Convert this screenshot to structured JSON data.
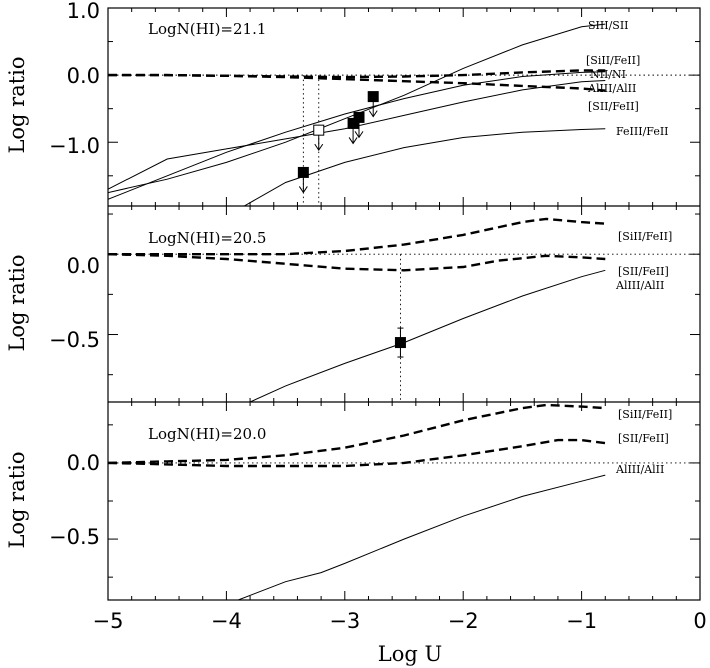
{
  "chart_data": {
    "type": "line",
    "xlabel": "Log  U",
    "xlim": [
      -5,
      0
    ],
    "x_ticks": [
      -5,
      -4,
      -3,
      -2,
      -1,
      0
    ],
    "x_tick_labels": [
      "−5",
      "−4",
      "−3",
      "−2",
      "−1",
      "0"
    ],
    "panels": [
      {
        "id": "p1",
        "title": "LogN(HI)=21.1",
        "ylabel": "Log  ratio",
        "ylim": [
          -1.95,
          1.0
        ],
        "y_ticks": [
          1.0,
          0.0,
          -1.0
        ],
        "y_tick_labels": [
          "1.0",
          "0.0",
          "−1.0"
        ],
        "minor_y_ticks": [
          0.5,
          -0.5,
          -1.5
        ],
        "reference_line": 0,
        "series": [
          {
            "name": "SIII/SII",
            "style": "solid",
            "x": [
              -5,
              -4.5,
              -4,
              -3.5,
              -3,
              -2.5,
              -2,
              -1.5,
              -1,
              -0.8
            ],
            "y": [
              -1.75,
              -1.55,
              -1.3,
              -1.0,
              -0.65,
              -0.3,
              0.1,
              0.45,
              0.72,
              0.76
            ]
          },
          {
            "name": "[SiII/FeII]",
            "style": "dashed",
            "x": [
              -5,
              -4.5,
              -4,
              -3.5,
              -3,
              -2.5,
              -2,
              -1.5,
              -1,
              -0.8
            ],
            "y": [
              0.0,
              0.0,
              -0.01,
              -0.02,
              -0.03,
              -0.02,
              0.0,
              0.04,
              0.07,
              0.07
            ]
          },
          {
            "name": "NII/NI",
            "style": "solid",
            "x": [
              -5,
              -4.5,
              -4,
              -3.5,
              -3,
              -2.5,
              -2,
              -1.5,
              -1,
              -0.8
            ],
            "y": [
              -1.85,
              -1.5,
              -1.15,
              -0.85,
              -0.58,
              -0.35,
              -0.15,
              -0.02,
              0.04,
              0.05
            ]
          },
          {
            "name": "AlIII/AlII",
            "style": "dashed",
            "x": [
              -5,
              -4.5,
              -4,
              -3.5,
              -3,
              -2.5,
              -2,
              -1.5,
              -1,
              -0.8
            ],
            "y": [
              0.0,
              0.0,
              -0.01,
              -0.03,
              -0.06,
              -0.09,
              -0.12,
              -0.16,
              -0.2,
              -0.23
            ]
          },
          {
            "name": "[SII/FeII]",
            "style": "solid",
            "x": [
              -5,
              -4.5,
              -4,
              -3.5,
              -3,
              -2.5,
              -2,
              -1.5,
              -1,
              -0.8
            ],
            "y": [
              -1.7,
              -1.25,
              -1.1,
              -0.95,
              -0.8,
              -0.6,
              -0.4,
              -0.22,
              -0.1,
              -0.08
            ]
          },
          {
            "name": "FeIII/FeII",
            "style": "solid",
            "x": [
              -3.85,
              -3.5,
              -3,
              -2.5,
              -2,
              -1.5,
              -1,
              -0.8
            ],
            "y": [
              -1.95,
              -1.6,
              -1.3,
              -1.08,
              -0.93,
              -0.85,
              -0.81,
              -0.8
            ]
          }
        ],
        "curve_labels": [
          "SIII/SII",
          "[SiII/FeII]",
          "NII/NI",
          "AlIII/AlII",
          "[SII/FeII]",
          "FeIII/FeII"
        ],
        "markers": [
          {
            "x": -3.35,
            "y": -1.45,
            "filled": true,
            "upper_limit": true
          },
          {
            "x": -3.22,
            "y": -0.82,
            "filled": false,
            "upper_limit": true
          },
          {
            "x": -2.93,
            "y": -0.72,
            "filled": true,
            "upper_limit": true
          },
          {
            "x": -2.88,
            "y": -0.63,
            "filled": true,
            "upper_limit": true
          },
          {
            "x": -2.76,
            "y": -0.32,
            "filled": true,
            "upper_limit": true
          }
        ],
        "dotted_verticals": [
          -3.35,
          -3.22
        ]
      },
      {
        "id": "p2",
        "title": "LogN(HI)=20.5",
        "ylabel": "Log  ratio",
        "ylim": [
          -0.92,
          0.3
        ],
        "y_ticks": [
          0.0,
          -0.5
        ],
        "y_tick_labels": [
          "0.0",
          "−0.5"
        ],
        "minor_y_ticks": [
          0.25,
          -0.25,
          -0.75
        ],
        "reference_line": 0,
        "series": [
          {
            "name": "[SiII/FeII]",
            "style": "dashed",
            "x": [
              -5,
              -4.5,
              -4,
              -3.5,
              -3,
              -2.5,
              -2,
              -1.5,
              -1.3,
              -1,
              -0.8
            ],
            "y": [
              0.0,
              0.0,
              0.0,
              0.0,
              0.02,
              0.06,
              0.12,
              0.2,
              0.22,
              0.2,
              0.19
            ]
          },
          {
            "name": "[SII/FeII]",
            "style": "dashed",
            "x": [
              -5,
              -4.5,
              -4,
              -3.5,
              -3,
              -2.5,
              -2,
              -1.7,
              -1.3,
              -1,
              -0.8
            ],
            "y": [
              0.0,
              -0.01,
              -0.03,
              -0.06,
              -0.09,
              -0.1,
              -0.08,
              -0.04,
              -0.01,
              -0.02,
              -0.03
            ]
          },
          {
            "name": "AlIII/AlII",
            "style": "solid",
            "x": [
              -3.8,
              -3.5,
              -3,
              -2.5,
              -2,
              -1.5,
              -1,
              -0.8
            ],
            "y": [
              -0.92,
              -0.82,
              -0.68,
              -0.55,
              -0.4,
              -0.26,
              -0.14,
              -0.1
            ]
          }
        ],
        "curve_labels": [
          "[SiII/FeII]",
          "[SII/FeII]",
          "AlIII/AlII"
        ],
        "markers": [
          {
            "x": -2.53,
            "y": -0.55,
            "filled": true,
            "upper_limit": false,
            "yerr": 0.09
          }
        ],
        "dotted_verticals": [
          -2.53
        ]
      },
      {
        "id": "p3",
        "title": "LogN(HI)=20.0",
        "ylabel": "Log  ratio",
        "ylim": [
          -0.9,
          0.4
        ],
        "y_ticks": [
          0.0,
          -0.5
        ],
        "y_tick_labels": [
          "0.0",
          "−0.5"
        ],
        "minor_y_ticks": [
          0.25,
          -0.25,
          -0.75
        ],
        "reference_line": 0,
        "series": [
          {
            "name": "[SiII/FeII]",
            "style": "dashed",
            "x": [
              -5,
              -4.5,
              -4,
              -3.5,
              -3,
              -2.5,
              -2,
              -1.5,
              -1.3,
              -1,
              -0.8
            ],
            "y": [
              0.0,
              0.01,
              0.02,
              0.05,
              0.1,
              0.18,
              0.28,
              0.36,
              0.38,
              0.37,
              0.36
            ]
          },
          {
            "name": "[SII/FeII]",
            "style": "dashed",
            "x": [
              -5,
              -4.5,
              -4,
              -3.5,
              -3,
              -2.5,
              -2,
              -1.5,
              -1.2,
              -1,
              -0.8
            ],
            "y": [
              0.0,
              -0.01,
              -0.02,
              -0.02,
              -0.02,
              0.0,
              0.05,
              0.11,
              0.15,
              0.15,
              0.13
            ]
          },
          {
            "name": "AlIII/AlII",
            "style": "solid",
            "x": [
              -3.9,
              -3.5,
              -3.2,
              -3,
              -2.5,
              -2,
              -1.5,
              -1,
              -0.8
            ],
            "y": [
              -0.9,
              -0.78,
              -0.72,
              -0.66,
              -0.5,
              -0.35,
              -0.22,
              -0.12,
              -0.08
            ]
          }
        ],
        "curve_labels": [
          "[SiII/FeII]",
          "[SII/FeII]",
          "AlIII/AlII"
        ],
        "markers": [],
        "dotted_verticals": []
      }
    ]
  }
}
